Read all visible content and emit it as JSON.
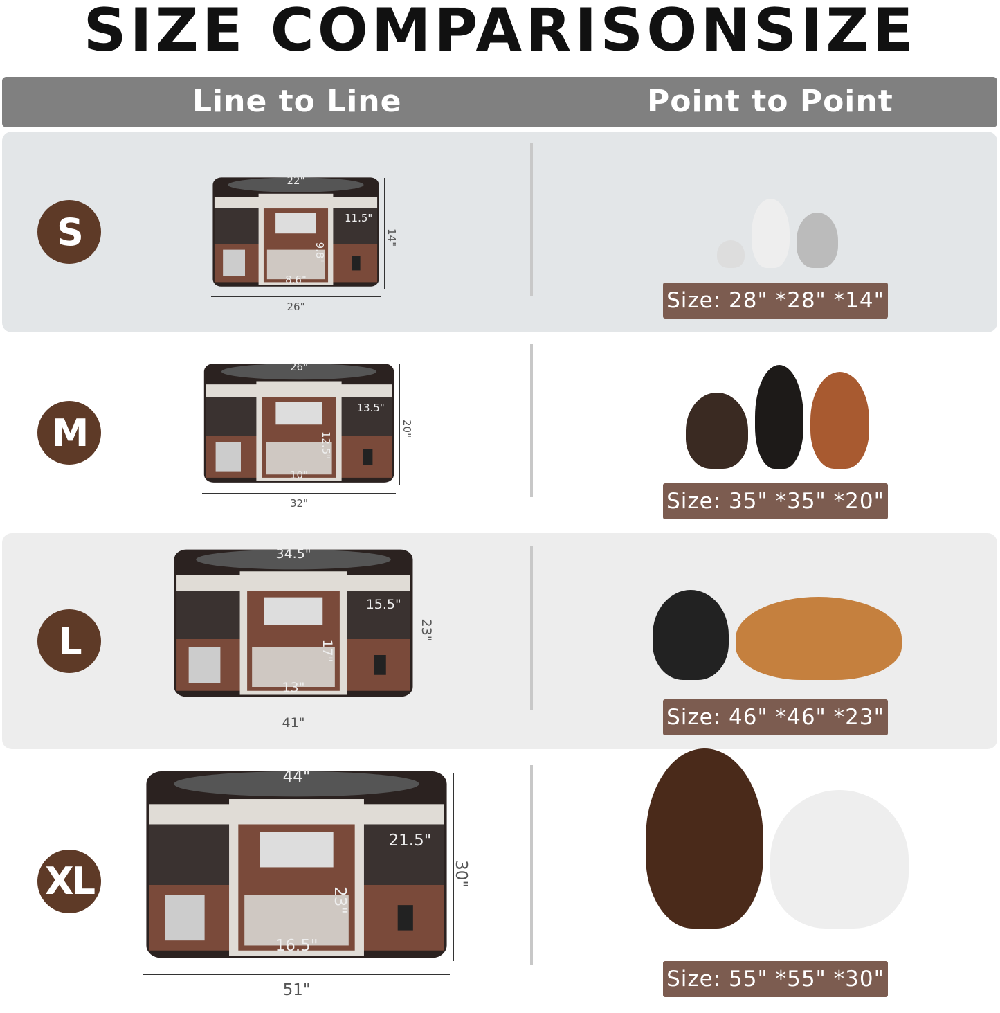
{
  "title": "SIZE COMPARISONSIZE",
  "header": {
    "left": "Line to Line",
    "right": "Point to Point"
  },
  "colors": {
    "badge": "#5e3a27",
    "size_label": "#7c5c50",
    "header": "#808080",
    "playpen_fabric": "#7a4a3a",
    "playpen_trim": "#e0dcd6"
  },
  "sizes": [
    {
      "label": "S",
      "top_diameter": "22\"",
      "side_width": "11.5\"",
      "door_height": "9.8\"",
      "door_width": "8.6\"",
      "height": "14\"",
      "width": "26\"",
      "size_text": "Size: 28\" *28\" *14\"",
      "pets": "small-pets-icon"
    },
    {
      "label": "M",
      "top_diameter": "26\"",
      "side_width": "13.5\"",
      "door_height": "12.5\"",
      "door_width": "10\"",
      "height": "20\"",
      "width": "32\"",
      "size_text": "Size: 35\" *35\" *20\"",
      "pets": "medium-dogs-icon"
    },
    {
      "label": "L",
      "top_diameter": "34.5\"",
      "side_width": "15.5\"",
      "door_height": "17\"",
      "door_width": "13\"",
      "height": "23\"",
      "width": "41\"",
      "size_text": "Size: 46\" *46\" *23\"",
      "pets": "large-dogs-icon"
    },
    {
      "label": "XL",
      "top_diameter": "44\"",
      "side_width": "21.5\"",
      "door_height": "23\"",
      "door_width": "16.5\"",
      "height": "30\"",
      "width": "51\"",
      "size_text": "Size: 55\" *55\" *30\"",
      "pets": "giant-dogs-icon"
    }
  ]
}
